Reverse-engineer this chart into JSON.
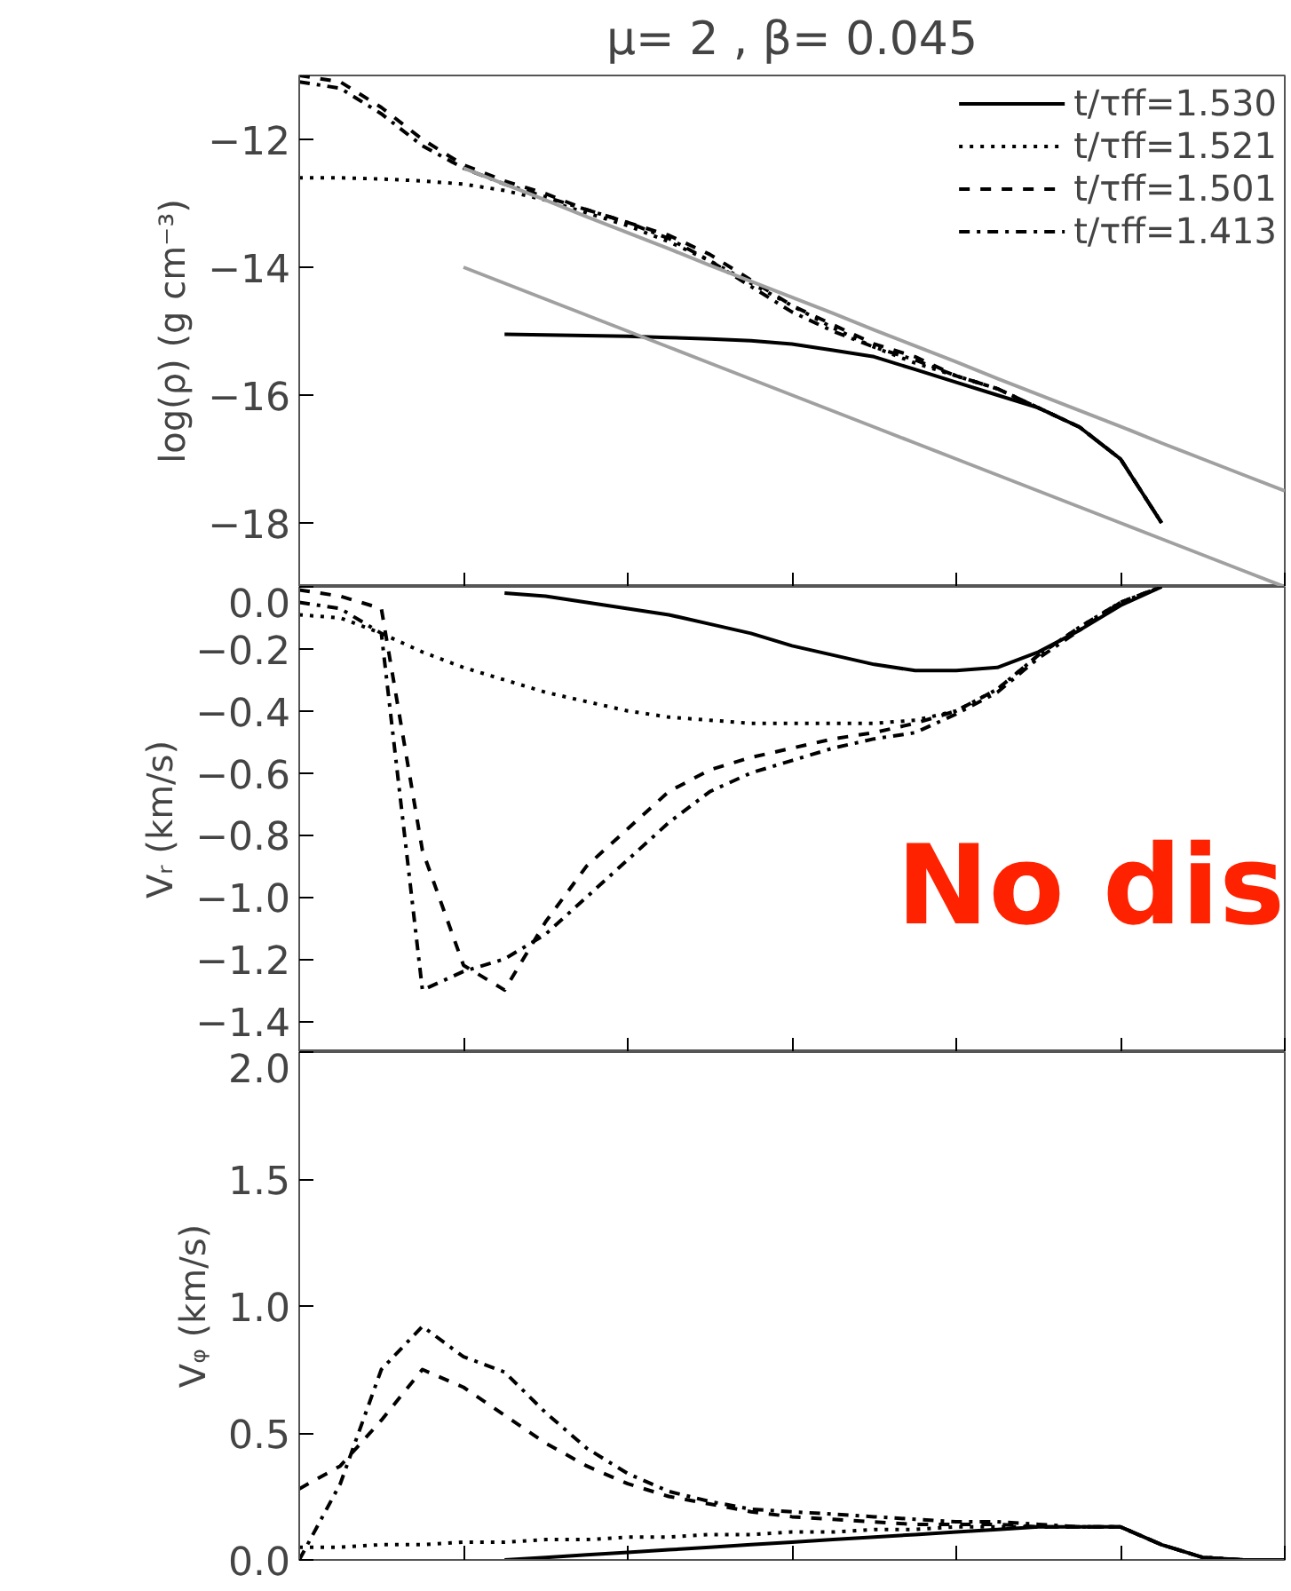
{
  "chart_data": [
    {
      "type": "line",
      "title": "μ= 2 , β= 0.045",
      "ylabel": "log(ρ) (g cm⁻³)",
      "categories": [
        null,
        null,
        null,
        null,
        null,
        null,
        null,
        null,
        null,
        null,
        null,
        null,
        null,
        null,
        null,
        null,
        null,
        null,
        null,
        null,
        null,
        null,
        null,
        null,
        null
      ],
      "ylim": [
        -19,
        -11
      ],
      "yticks": [
        -18,
        -16,
        -14,
        -12
      ],
      "grid": false,
      "legend": "top right",
      "tick_labels": "y",
      "series": [
        {
          "name": "t/τff=1.530",
          "color": "#000000",
          "line_style": "solid",
          "values": [
            null,
            null,
            null,
            null,
            null,
            -15.05,
            -15.06,
            -15.07,
            -15.08,
            -15.1,
            -15.12,
            -15.15,
            -15.2,
            -15.3,
            -15.4,
            -15.6,
            -15.8,
            -16.0,
            -16.2,
            -16.5,
            -17.0,
            -18.0,
            null,
            null,
            null
          ]
        },
        {
          "name": "t/τff=1.521",
          "color": "#000000",
          "line_style": "dotted",
          "values": [
            -12.6,
            -12.6,
            -12.62,
            -12.65,
            -12.7,
            -12.8,
            -12.95,
            -13.15,
            -13.35,
            -13.6,
            -13.9,
            -14.25,
            -14.6,
            -14.95,
            -15.25,
            -15.5,
            -15.7,
            -15.9,
            -16.2,
            -16.5,
            -17.0,
            -18.0,
            null,
            null,
            null
          ]
        },
        {
          "name": "t/τff=1.501",
          "color": "#000000",
          "line_style": "dashed",
          "values": [
            -11.0,
            -11.1,
            -11.5,
            -12.0,
            -12.4,
            -12.65,
            -12.85,
            -13.1,
            -13.3,
            -13.5,
            -13.8,
            -14.2,
            -14.6,
            -14.9,
            -15.2,
            -15.4,
            -15.7,
            -15.9,
            -16.2,
            -16.5,
            -17.0,
            -18.0,
            null,
            null,
            null
          ]
        },
        {
          "name": "t/τff=1.413",
          "color": "#000000",
          "line_style": "dashdot",
          "values": [
            -11.1,
            -11.2,
            -11.6,
            -12.1,
            -12.45,
            -12.7,
            -12.9,
            -13.1,
            -13.3,
            -13.55,
            -13.9,
            -14.3,
            -14.7,
            -15.0,
            -15.25,
            -15.45,
            -15.7,
            -15.9,
            -16.2,
            -16.5,
            -17.0,
            -18.0,
            null,
            null,
            null
          ]
        },
        {
          "color": "#a0a0a0",
          "line_style": "solid",
          "values": [
            null,
            null,
            null,
            null,
            -12.45,
            -12.7,
            -12.95,
            -13.21,
            -13.46,
            -13.71,
            -13.97,
            -14.22,
            -14.47,
            -14.72,
            -14.98,
            -15.23,
            -15.48,
            -15.74,
            -15.99,
            -16.24,
            -16.49,
            -16.75,
            -17.0,
            -17.25,
            -17.5
          ]
        },
        {
          "color": "#a0a0a0",
          "line_style": "solid",
          "values": [
            null,
            null,
            null,
            null,
            -14.0,
            -14.25,
            -14.5,
            -14.75,
            -15.0,
            -15.25,
            -15.5,
            -15.75,
            -16.0,
            -16.25,
            -16.5,
            -16.75,
            -17.0,
            -17.25,
            -17.5,
            -17.75,
            -18.0,
            -18.25,
            -18.5,
            -18.75,
            -19.0
          ]
        }
      ]
    },
    {
      "type": "line",
      "ylabel": "Vᵣ (km/s)",
      "categories": [
        null,
        null,
        null,
        null,
        null,
        null,
        null,
        null,
        null,
        null,
        null,
        null,
        null,
        null,
        null,
        null,
        null,
        null,
        null,
        null,
        null,
        null,
        null,
        null,
        null
      ],
      "ylim": [
        -1.5,
        0.0
      ],
      "yticks": [
        {
          "value": 0,
          "label": "0.0"
        },
        {
          "value": -0.2,
          "label": "−0.2"
        },
        {
          "value": -0.4,
          "label": "−0.4"
        },
        {
          "value": -0.6,
          "label": "−0.6"
        },
        {
          "value": -0.8,
          "label": "−0.8"
        },
        {
          "value": -1.0,
          "label": "−1.0"
        },
        {
          "value": -1.2,
          "label": "−1.2"
        },
        {
          "value": -1.4,
          "label": "−1.4"
        }
      ],
      "grid": false,
      "tick_labels": "y",
      "annotations": [
        "No dis"
      ],
      "series": [
        {
          "color": "#000000",
          "line_style": "solid",
          "values": [
            null,
            null,
            null,
            null,
            null,
            -0.02,
            -0.03,
            -0.05,
            -0.07,
            -0.09,
            -0.12,
            -0.15,
            -0.19,
            -0.22,
            -0.25,
            -0.27,
            -0.27,
            -0.26,
            -0.21,
            -0.14,
            -0.06,
            0.0,
            null,
            null,
            null
          ]
        },
        {
          "color": "#000000",
          "line_style": "dotted",
          "values": [
            -0.09,
            -0.1,
            -0.15,
            -0.21,
            -0.26,
            -0.3,
            -0.34,
            -0.37,
            -0.4,
            -0.42,
            -0.43,
            -0.44,
            -0.44,
            -0.44,
            -0.44,
            -0.43,
            -0.4,
            -0.33,
            -0.22,
            -0.13,
            -0.05,
            0.0,
            null,
            null,
            null
          ]
        },
        {
          "color": "#000000",
          "line_style": "dashed",
          "values": [
            -0.01,
            -0.03,
            -0.07,
            -0.85,
            -1.22,
            -1.3,
            -1.08,
            -0.9,
            -0.78,
            -0.66,
            -0.59,
            -0.55,
            -0.52,
            -0.49,
            -0.47,
            -0.44,
            -0.4,
            -0.33,
            -0.22,
            -0.13,
            -0.05,
            0.0,
            null,
            null,
            null
          ]
        },
        {
          "color": "#000000",
          "line_style": "dashdot",
          "values": [
            -0.05,
            -0.07,
            -0.15,
            -1.3,
            -1.24,
            -1.2,
            -1.12,
            -1.0,
            -0.88,
            -0.76,
            -0.66,
            -0.6,
            -0.56,
            -0.52,
            -0.49,
            -0.47,
            -0.41,
            -0.34,
            -0.23,
            -0.14,
            -0.05,
            0.0,
            null,
            null,
            null
          ]
        }
      ]
    },
    {
      "type": "line",
      "ylabel": "Vᵩ (km/s)",
      "categories": [
        null,
        null,
        null,
        null,
        null,
        null,
        null,
        null,
        null,
        null,
        null,
        null,
        null,
        null,
        null,
        null,
        null,
        null,
        null,
        null,
        null,
        null,
        null,
        null,
        null
      ],
      "ylim": [
        0.0,
        2.0
      ],
      "yticks": [
        {
          "value": 0,
          "label": "0.0"
        },
        {
          "value": 0.5,
          "label": "0.5"
        },
        {
          "value": 1.0,
          "label": "1.0"
        },
        {
          "value": 1.5,
          "label": "1.5"
        },
        {
          "value": 2.0,
          "label": "2.0"
        }
      ],
      "grid": false,
      "tick_labels": "y",
      "series": [
        {
          "color": "#000000",
          "line_style": "solid",
          "values": [
            null,
            null,
            null,
            null,
            null,
            0.0,
            0.01,
            0.02,
            0.03,
            0.04,
            0.05,
            0.06,
            0.07,
            0.08,
            0.09,
            0.1,
            0.11,
            0.12,
            0.13,
            0.13,
            0.13,
            0.06,
            0.01,
            0.0,
            0.0
          ]
        },
        {
          "color": "#000000",
          "line_style": "dotted",
          "values": [
            0.05,
            0.05,
            0.06,
            0.06,
            0.07,
            0.07,
            0.08,
            0.08,
            0.09,
            0.09,
            0.1,
            0.1,
            0.11,
            0.11,
            0.12,
            0.12,
            0.13,
            0.13,
            0.13,
            0.13,
            0.13,
            0.06,
            0.01,
            0.0,
            0.0
          ]
        },
        {
          "color": "#000000",
          "line_style": "dashed",
          "values": [
            0.28,
            0.37,
            0.55,
            0.75,
            0.68,
            0.57,
            0.46,
            0.37,
            0.3,
            0.25,
            0.22,
            0.19,
            0.17,
            0.16,
            0.15,
            0.14,
            0.14,
            0.14,
            0.13,
            0.13,
            0.13,
            0.06,
            0.01,
            0.0,
            0.0
          ]
        },
        {
          "color": "#000000",
          "line_style": "dashdot",
          "values": [
            0.0,
            0.3,
            0.75,
            0.92,
            0.8,
            0.74,
            0.58,
            0.44,
            0.34,
            0.27,
            0.23,
            0.2,
            0.19,
            0.18,
            0.17,
            0.16,
            0.15,
            0.15,
            0.14,
            0.13,
            0.13,
            0.06,
            0.01,
            0.0,
            0.0
          ]
        }
      ]
    }
  ]
}
